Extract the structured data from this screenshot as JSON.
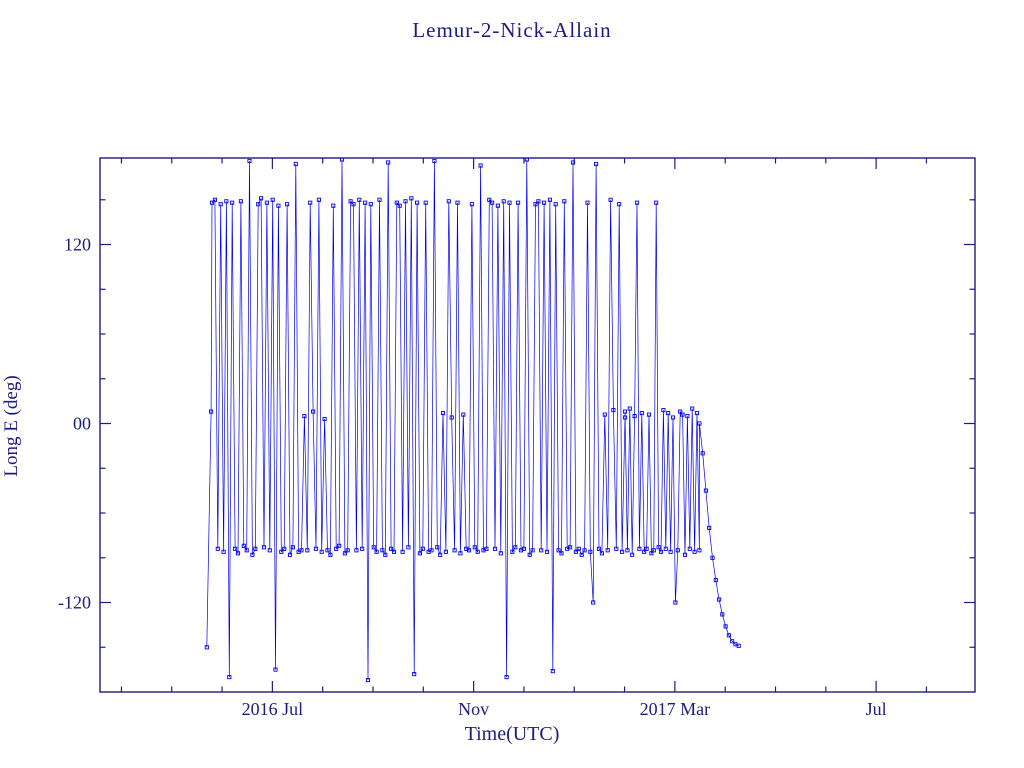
{
  "page": {
    "background": "#ffffff"
  },
  "chart_data": {
    "type": "line",
    "title": "Lemur-2-Nick-Allain",
    "xlabel": "Time(UTC)",
    "ylabel": "Long E (deg)",
    "colors": {
      "data": "#0000ee",
      "axis": "#1c1c80",
      "text": "#1c1c80"
    },
    "marker": "open-square",
    "xlim": [
      0,
      1
    ],
    "ylim": [
      -180,
      178
    ],
    "x_axis": {
      "first_major_u": 0.197,
      "month_step_u": 0.0575,
      "major_every": 4,
      "minor_month_start": -3,
      "minor_month_end": 13,
      "major_labels": [
        "2016 Jul",
        "Nov",
        "2017 Mar",
        "Jul"
      ]
    },
    "y_axis": {
      "major_ticks": [
        {
          "value": 120,
          "label": "120"
        },
        {
          "value": 0,
          "label": "00"
        },
        {
          "value": -120,
          "label": "-120"
        }
      ],
      "minor_ticks": [
        -150,
        -90,
        -60,
        -30,
        30,
        60,
        90,
        150
      ]
    },
    "segments": [
      {
        "x_start": 0.122,
        "x_end": 0.127,
        "y": [
          -150,
          8
        ]
      },
      {
        "x_start": 0.128,
        "x_end": 0.6,
        "y": [
          148,
          150,
          -84,
          147,
          -86,
          149,
          -170,
          148,
          -84,
          -87,
          149,
          -82,
          -85,
          176,
          -88,
          -84,
          147,
          151,
          -83,
          148,
          -85,
          150,
          -165,
          146,
          -86,
          -84,
          147,
          -88,
          -83,
          174,
          -86,
          -85,
          5,
          -85,
          148,
          8,
          -84,
          150,
          -86,
          3,
          -85,
          -88,
          146,
          -84,
          -82,
          177,
          -87,
          -85,
          149,
          147,
          -85,
          150,
          -84,
          148,
          -172,
          147,
          -83,
          -86,
          150,
          -85,
          -88,
          175,
          -84,
          -86,
          148,
          146,
          -86,
          149,
          -83,
          151,
          -168,
          148,
          -87,
          -84,
          148,
          -86,
          -85,
          176,
          -83,
          -88,
          7,
          -86,
          149,
          4,
          -85,
          148,
          -87,
          6,
          -84,
          -85,
          147,
          -83,
          -86,
          173,
          -85,
          -84,
          150,
          148,
          -84,
          146,
          -87,
          149,
          -170,
          148,
          -86,
          -83,
          148,
          -85,
          -84,
          177,
          -88,
          -85,
          147,
          149,
          -85,
          148,
          -86,
          150,
          -166,
          147,
          -85,
          -87,
          149,
          -84,
          -83,
          175,
          -86,
          -84,
          -88,
          -85,
          148,
          -86,
          -120,
          174,
          -84,
          -87,
          6,
          -85,
          150,
          9,
          -84,
          147,
          -86,
          4
        ]
      },
      {
        "x_start": 0.6,
        "x_end": 0.685,
        "y": [
          8,
          -85,
          10,
          -88,
          5,
          148,
          -84,
          7,
          -86,
          -84,
          6,
          -87,
          -85,
          148,
          -83,
          -86,
          9,
          -84,
          7,
          -86,
          4,
          -120,
          -85,
          8,
          6,
          -88,
          5,
          -84,
          10,
          -86,
          7,
          -85
        ]
      },
      {
        "x_start": 0.685,
        "x_end": 0.73,
        "y": [
          0,
          -20,
          -45,
          -70,
          -90,
          -105,
          -118,
          -128,
          -136,
          -142,
          -146,
          -148,
          -149
        ]
      }
    ]
  }
}
